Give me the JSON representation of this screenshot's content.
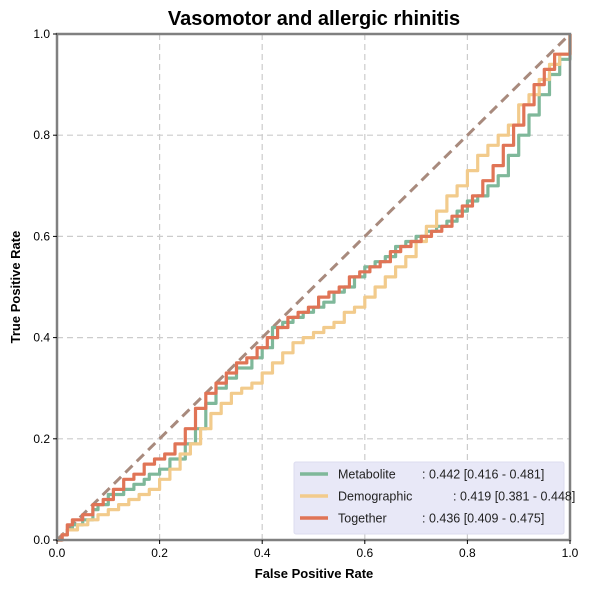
{
  "chart_data": {
    "type": "line",
    "title": "Vasomotor and allergic rhinitis",
    "xlabel": "False Positive Rate",
    "ylabel": "True Positive Rate",
    "xlim": [
      0,
      1
    ],
    "ylim": [
      0,
      1
    ],
    "xticks": [
      "0.0",
      "0.2",
      "0.4",
      "0.6",
      "0.8",
      "1.0"
    ],
    "yticks": [
      "0.0",
      "0.2",
      "0.4",
      "0.6",
      "0.8",
      "1.0"
    ],
    "grid": true,
    "legend_position": "lower-right",
    "diagonal": {
      "x": [
        0,
        1
      ],
      "y": [
        0,
        1
      ],
      "color": "#a88a7d",
      "style": "dashed"
    },
    "series": [
      {
        "name": "Metabolite",
        "score_text": ": 0.442 [0.416 - 0.481]",
        "color": "#7fb89a",
        "x": [
          0.0,
          0.01,
          0.02,
          0.03,
          0.05,
          0.07,
          0.08,
          0.1,
          0.13,
          0.15,
          0.17,
          0.18,
          0.2,
          0.22,
          0.25,
          0.27,
          0.29,
          0.31,
          0.33,
          0.35,
          0.38,
          0.4,
          0.42,
          0.44,
          0.46,
          0.48,
          0.5,
          0.52,
          0.54,
          0.56,
          0.58,
          0.6,
          0.62,
          0.64,
          0.66,
          0.68,
          0.7,
          0.72,
          0.74,
          0.76,
          0.78,
          0.8,
          0.82,
          0.84,
          0.86,
          0.88,
          0.9,
          0.92,
          0.94,
          0.96,
          0.98,
          1.0
        ],
        "y": [
          0.0,
          0.01,
          0.02,
          0.03,
          0.04,
          0.06,
          0.07,
          0.09,
          0.1,
          0.11,
          0.12,
          0.13,
          0.14,
          0.16,
          0.19,
          0.22,
          0.27,
          0.3,
          0.32,
          0.34,
          0.36,
          0.38,
          0.42,
          0.43,
          0.44,
          0.45,
          0.46,
          0.47,
          0.49,
          0.5,
          0.52,
          0.54,
          0.55,
          0.56,
          0.58,
          0.59,
          0.6,
          0.61,
          0.62,
          0.63,
          0.65,
          0.67,
          0.68,
          0.7,
          0.72,
          0.76,
          0.8,
          0.84,
          0.88,
          0.92,
          0.95,
          1.0
        ]
      },
      {
        "name": "Demographic",
        "score_text": ": 0.419 [0.381 - 0.448]",
        "color": "#f2cb8c",
        "x": [
          0.0,
          0.01,
          0.02,
          0.04,
          0.06,
          0.08,
          0.1,
          0.12,
          0.14,
          0.16,
          0.18,
          0.2,
          0.22,
          0.24,
          0.26,
          0.28,
          0.3,
          0.32,
          0.34,
          0.36,
          0.38,
          0.4,
          0.42,
          0.44,
          0.46,
          0.48,
          0.5,
          0.52,
          0.54,
          0.56,
          0.58,
          0.6,
          0.62,
          0.64,
          0.66,
          0.68,
          0.7,
          0.72,
          0.74,
          0.76,
          0.78,
          0.8,
          0.82,
          0.84,
          0.86,
          0.88,
          0.9,
          0.92,
          0.94,
          0.96,
          0.98,
          1.0
        ],
        "y": [
          0.0,
          0.01,
          0.02,
          0.03,
          0.04,
          0.05,
          0.06,
          0.07,
          0.08,
          0.09,
          0.1,
          0.12,
          0.14,
          0.17,
          0.19,
          0.22,
          0.25,
          0.27,
          0.29,
          0.3,
          0.31,
          0.33,
          0.35,
          0.37,
          0.39,
          0.4,
          0.41,
          0.42,
          0.43,
          0.45,
          0.46,
          0.48,
          0.5,
          0.52,
          0.54,
          0.56,
          0.59,
          0.62,
          0.65,
          0.68,
          0.7,
          0.73,
          0.76,
          0.78,
          0.8,
          0.82,
          0.86,
          0.88,
          0.91,
          0.94,
          0.96,
          1.0
        ]
      },
      {
        "name": "Together",
        "score_text": ": 0.436 [0.409 - 0.475]",
        "color": "#e07456",
        "x": [
          0.0,
          0.01,
          0.02,
          0.03,
          0.05,
          0.07,
          0.09,
          0.11,
          0.13,
          0.15,
          0.17,
          0.19,
          0.21,
          0.23,
          0.25,
          0.27,
          0.29,
          0.31,
          0.33,
          0.35,
          0.37,
          0.39,
          0.41,
          0.43,
          0.45,
          0.47,
          0.49,
          0.51,
          0.53,
          0.55,
          0.57,
          0.59,
          0.61,
          0.63,
          0.65,
          0.67,
          0.69,
          0.71,
          0.73,
          0.75,
          0.77,
          0.79,
          0.81,
          0.83,
          0.85,
          0.87,
          0.89,
          0.91,
          0.93,
          0.95,
          0.97,
          1.0
        ],
        "y": [
          0.0,
          0.01,
          0.03,
          0.04,
          0.05,
          0.07,
          0.08,
          0.1,
          0.12,
          0.13,
          0.15,
          0.16,
          0.17,
          0.19,
          0.22,
          0.26,
          0.29,
          0.31,
          0.33,
          0.35,
          0.36,
          0.38,
          0.4,
          0.42,
          0.44,
          0.45,
          0.46,
          0.48,
          0.49,
          0.5,
          0.52,
          0.53,
          0.54,
          0.55,
          0.57,
          0.58,
          0.59,
          0.6,
          0.61,
          0.62,
          0.64,
          0.66,
          0.68,
          0.71,
          0.74,
          0.78,
          0.82,
          0.86,
          0.9,
          0.93,
          0.96,
          1.0
        ]
      }
    ]
  }
}
